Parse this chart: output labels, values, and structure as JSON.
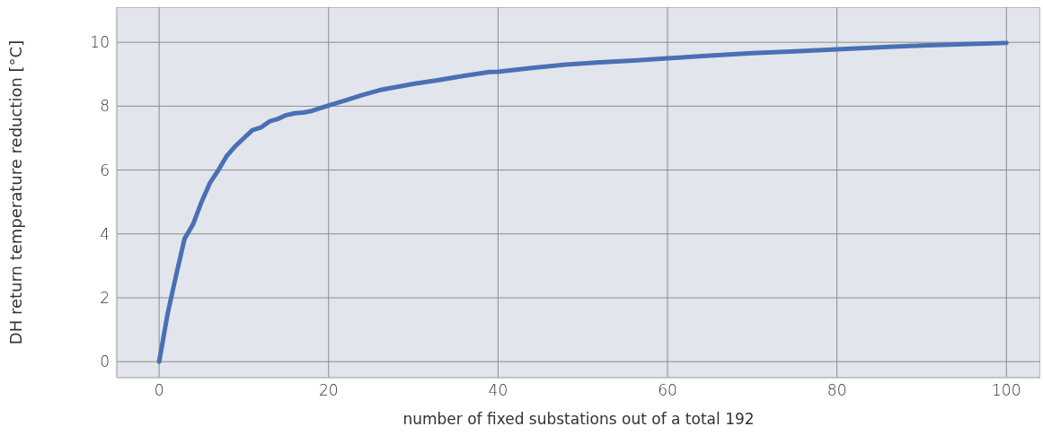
{
  "chart_data": {
    "type": "line",
    "xlabel": "number of fixed substations out of a total 192",
    "ylabel": "DH return temperature reduction [°C]",
    "x": [
      0,
      1,
      2,
      3,
      4,
      5,
      6,
      7,
      8,
      9,
      10,
      11,
      12,
      13,
      14,
      15,
      16,
      17,
      18,
      20,
      22,
      24,
      26,
      28,
      30,
      33,
      36,
      39,
      40,
      44,
      48,
      52,
      56,
      60,
      65,
      70,
      75,
      80,
      85,
      90,
      95,
      100
    ],
    "series": [
      {
        "color": "#4a70b4",
        "values": [
          0,
          1.5,
          2.7,
          3.85,
          4.3,
          5.0,
          5.6,
          6.0,
          6.45,
          6.75,
          7.0,
          7.25,
          7.33,
          7.52,
          7.6,
          7.72,
          7.78,
          7.8,
          7.85,
          8.02,
          8.18,
          8.35,
          8.5,
          8.6,
          8.7,
          8.82,
          8.95,
          9.07,
          9.08,
          9.2,
          9.3,
          9.37,
          9.43,
          9.5,
          9.58,
          9.66,
          9.72,
          9.78,
          9.84,
          9.9,
          9.94,
          9.98
        ]
      }
    ],
    "xlim": [
      -5,
      104
    ],
    "xticks": [
      0,
      20,
      40,
      60,
      80,
      100
    ],
    "ylim": [
      -0.5,
      11.1
    ],
    "yticks": [
      0,
      2,
      4,
      6,
      8,
      10
    ],
    "grid": true,
    "legend": false,
    "marker": "none",
    "line_style": "solid"
  }
}
